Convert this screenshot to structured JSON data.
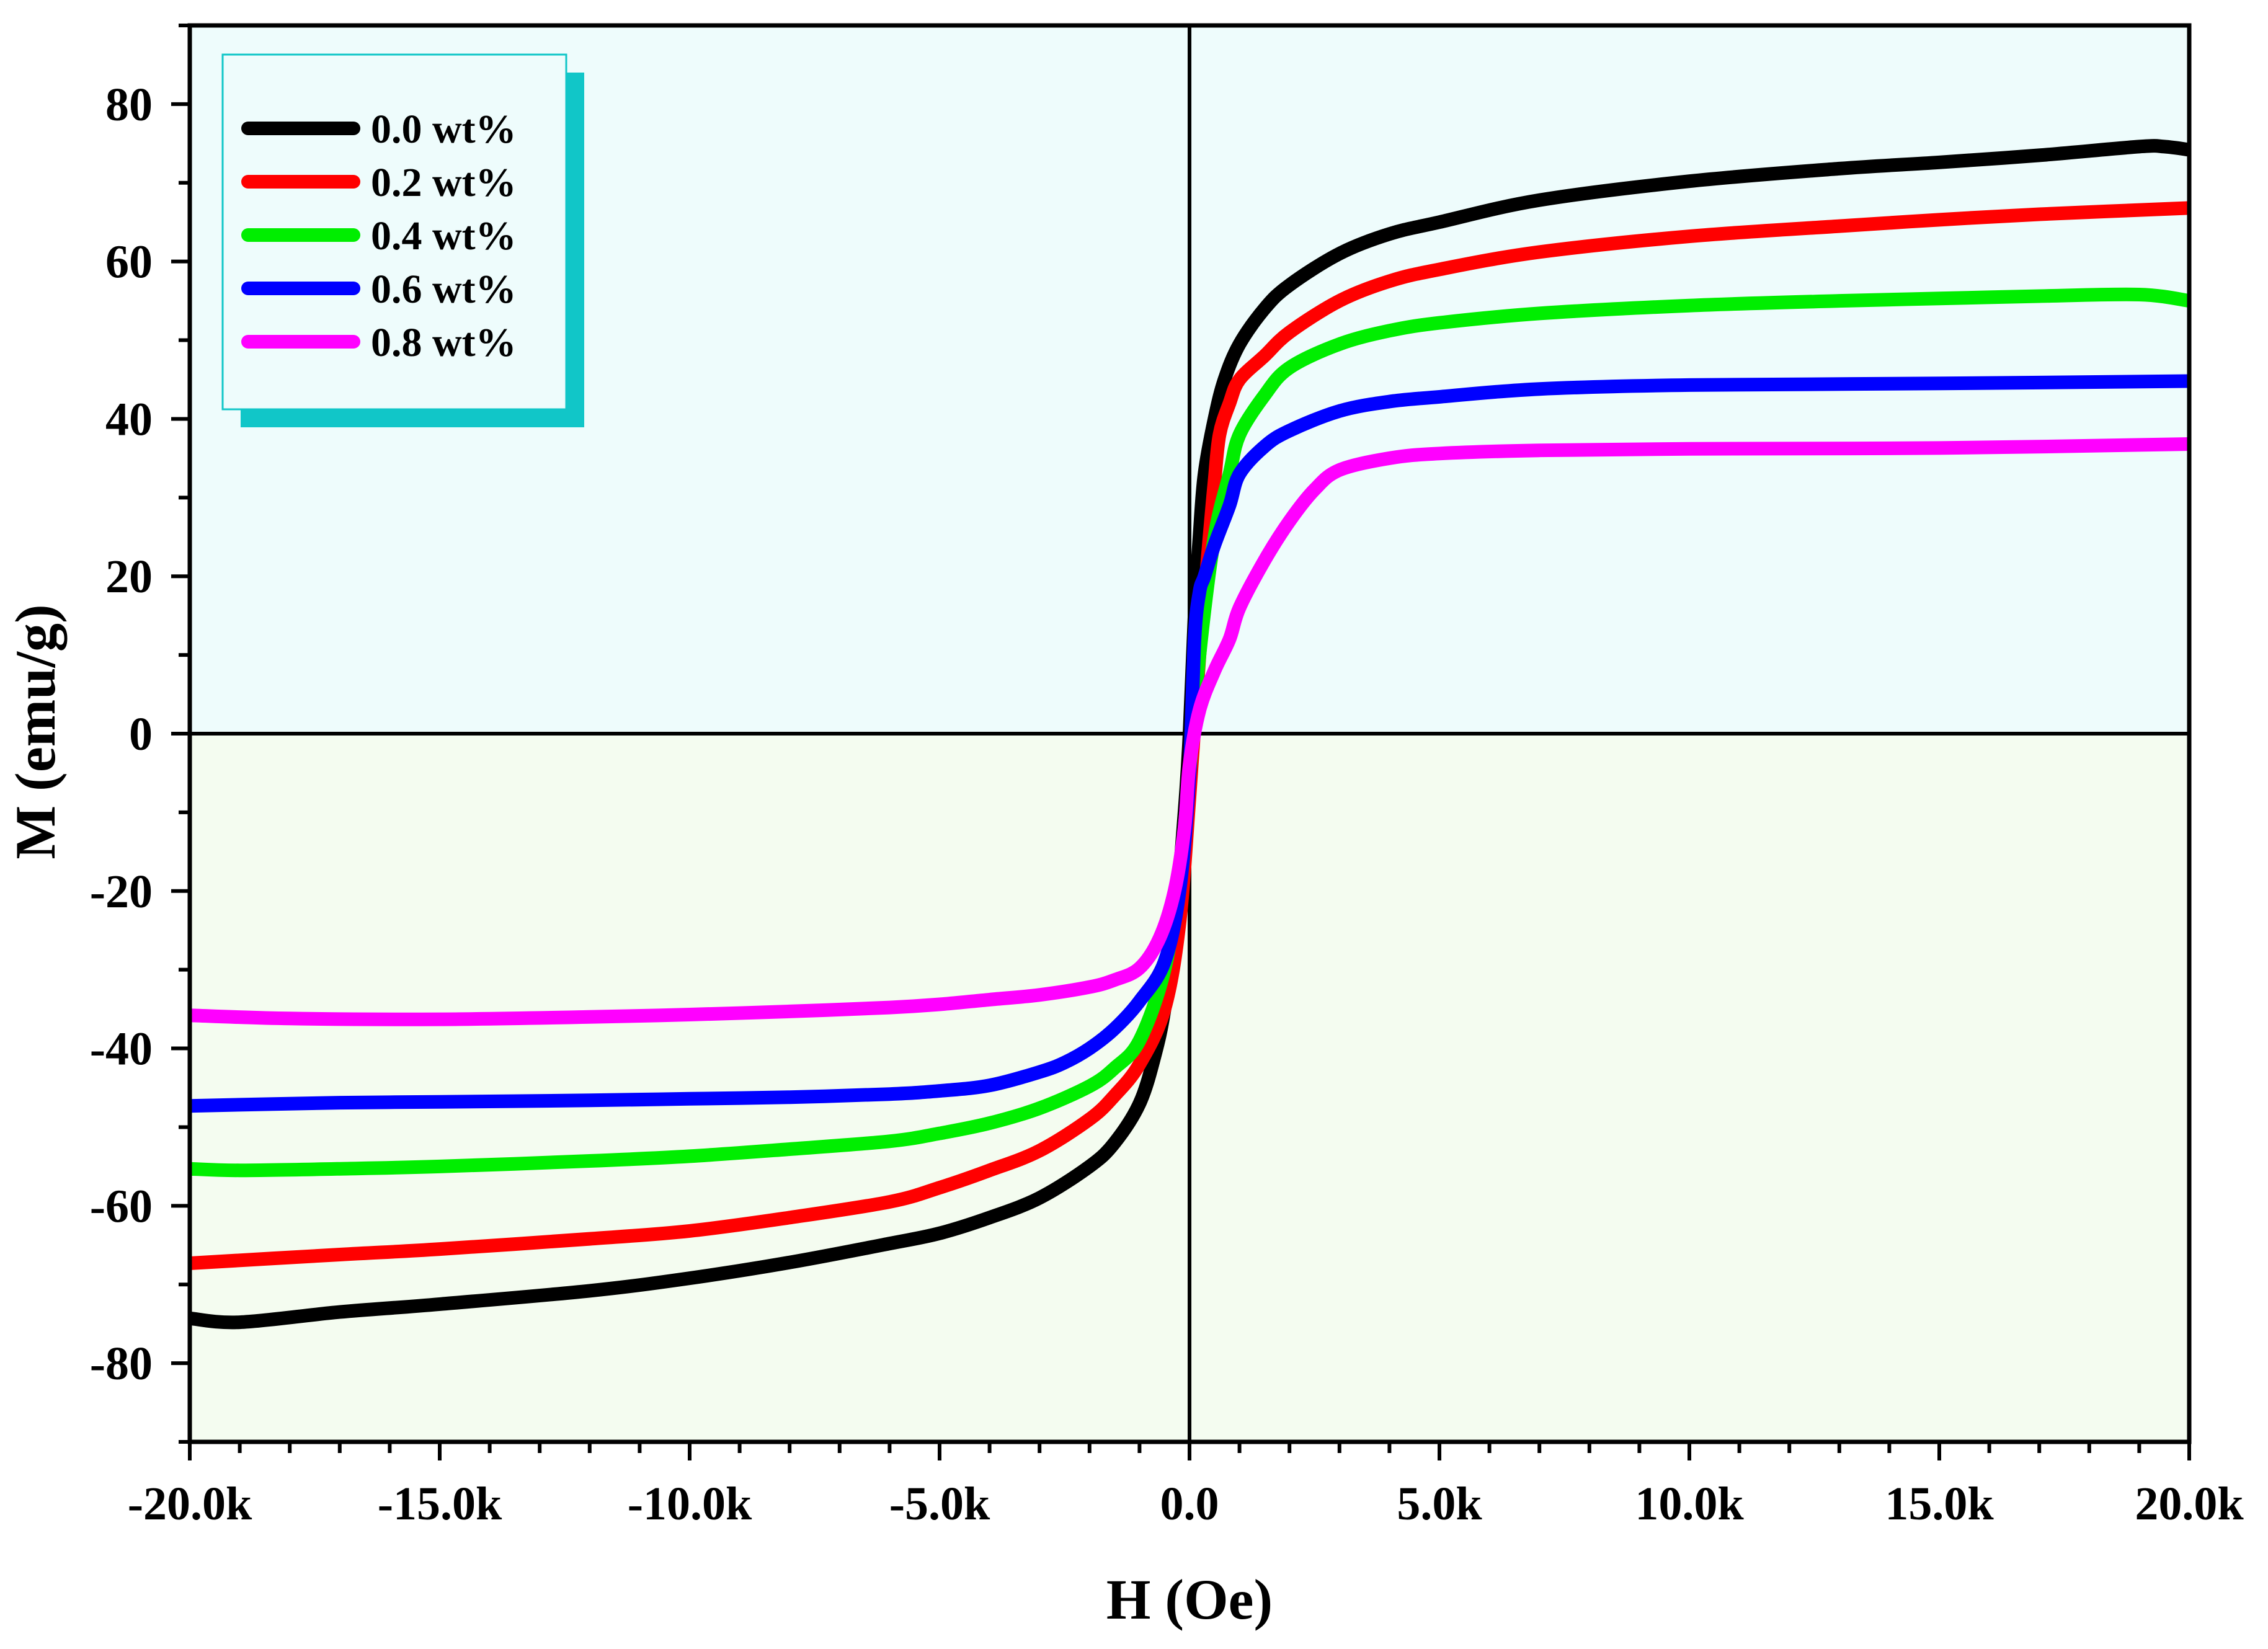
{
  "chart_data": {
    "type": "line",
    "title": "",
    "xlabel": "H (Oe)",
    "ylabel": "M (emu/g)",
    "xlim": [
      -20000,
      20000
    ],
    "ylim": [
      -90,
      90
    ],
    "x_ticks": [
      {
        "value": -20000,
        "label": "-20.0k"
      },
      {
        "value": -15000,
        "label": "-15.0k"
      },
      {
        "value": -10000,
        "label": "-10.0k"
      },
      {
        "value": -5000,
        "label": "-5.0k"
      },
      {
        "value": 0,
        "label": "0.0"
      },
      {
        "value": 5000,
        "label": "5.0k"
      },
      {
        "value": 10000,
        "label": "10.0k"
      },
      {
        "value": 15000,
        "label": "15.0k"
      },
      {
        "value": 20000,
        "label": "20.0k"
      }
    ],
    "y_ticks": [
      {
        "value": 80,
        "label": "80"
      },
      {
        "value": 60,
        "label": "60"
      },
      {
        "value": 40,
        "label": "40"
      },
      {
        "value": 20,
        "label": "20"
      },
      {
        "value": 0,
        "label": "0"
      },
      {
        "value": -20,
        "label": "-20"
      },
      {
        "value": -40,
        "label": "-40"
      },
      {
        "value": -60,
        "label": "-60"
      },
      {
        "value": -80,
        "label": "-80"
      }
    ],
    "grid": false,
    "zero_lines": true,
    "legend_position": "top-left",
    "background": {
      "upper": "#eefcfc",
      "lower": "#f4fcf0"
    },
    "series": [
      {
        "name": "0.0 wt%",
        "color": "#000000",
        "x": [
          -20000,
          -19000,
          -17000,
          -15000,
          -12000,
          -10000,
          -8000,
          -6000,
          -5000,
          -4000,
          -3000,
          -2000,
          -1500,
          -1000,
          -700,
          -500,
          -300,
          -100,
          0,
          100,
          200,
          300,
          500,
          700,
          1000,
          1500,
          2000,
          3000,
          4000,
          5000,
          7000,
          10000,
          13000,
          15000,
          17000,
          19000,
          19500,
          20000
        ],
        "y": [
          -74.3,
          -74.8,
          -73.5,
          -72.5,
          -70.8,
          -69.2,
          -67.2,
          -64.8,
          -63.5,
          -61.5,
          -59.0,
          -55.0,
          -52.0,
          -47.0,
          -41.0,
          -35.0,
          -25.0,
          -10.0,
          0.0,
          15.0,
          25.0,
          33.0,
          40.0,
          45.0,
          49.5,
          54.0,
          57.0,
          61.0,
          63.5,
          65.0,
          67.8,
          70.2,
          71.8,
          72.6,
          73.5,
          74.6,
          74.6,
          74.2
        ]
      },
      {
        "name": "0.2 wt%",
        "color": "#ff0000",
        "x": [
          -20000,
          -17000,
          -15000,
          -12000,
          -10000,
          -8000,
          -6000,
          -5000,
          -4000,
          -3000,
          -2000,
          -1500,
          -1000,
          -500,
          -200,
          0,
          200,
          400,
          500,
          600,
          800,
          1000,
          1500,
          2000,
          3000,
          4000,
          5000,
          7000,
          10000,
          13000,
          15000,
          17000,
          20000
        ],
        "y": [
          -67.3,
          -66.2,
          -65.5,
          -64.2,
          -63.2,
          -61.5,
          -59.5,
          -57.7,
          -55.5,
          -53.0,
          -49.0,
          -46.0,
          -42.0,
          -35.0,
          -24.0,
          -8.0,
          10.0,
          25.0,
          32.0,
          38.0,
          42.0,
          45.0,
          48.0,
          51.0,
          55.0,
          57.5,
          59.0,
          61.2,
          63.2,
          64.5,
          65.3,
          66.0,
          66.8
        ]
      },
      {
        "name": "0.4 wt%",
        "color": "#00ee00",
        "x": [
          -20000,
          -19000,
          -17000,
          -15000,
          -12000,
          -10000,
          -8000,
          -6000,
          -5000,
          -4000,
          -3000,
          -2000,
          -1500,
          -1000,
          -500,
          -200,
          0,
          200,
          500,
          800,
          1000,
          1500,
          2000,
          3000,
          4000,
          5000,
          7000,
          10000,
          13000,
          15000,
          17000,
          19000,
          20000
        ],
        "y": [
          -55.3,
          -55.5,
          -55.3,
          -55.0,
          -54.3,
          -53.7,
          -52.8,
          -51.8,
          -50.8,
          -49.5,
          -47.6,
          -44.8,
          -42.5,
          -39.0,
          -30.0,
          -18.0,
          -5.0,
          10.0,
          25.0,
          33.0,
          38.0,
          43.0,
          46.5,
          49.5,
          51.2,
          52.2,
          53.4,
          54.4,
          55.0,
          55.3,
          55.6,
          55.8,
          55.0
        ]
      },
      {
        "name": "0.6 wt%",
        "color": "#0000ff",
        "x": [
          -20000,
          -17000,
          -15000,
          -12000,
          -10000,
          -8000,
          -6000,
          -5000,
          -4000,
          -3000,
          -2500,
          -2000,
          -1500,
          -1000,
          -500,
          -200,
          0,
          100,
          200,
          300,
          500,
          800,
          1000,
          1500,
          2000,
          3000,
          4000,
          5000,
          7000,
          10000,
          15000,
          20000
        ],
        "y": [
          -47.3,
          -46.9,
          -46.8,
          -46.6,
          -46.4,
          -46.2,
          -45.8,
          -45.4,
          -44.7,
          -43.0,
          -41.8,
          -40.0,
          -37.5,
          -34.0,
          -29.0,
          -20.0,
          -5.0,
          12.0,
          18.0,
          20.0,
          24.0,
          29.0,
          33.0,
          36.5,
          38.5,
          41.0,
          42.2,
          42.8,
          43.8,
          44.3,
          44.5,
          44.8
        ]
      },
      {
        "name": "0.8 wt%",
        "color": "#ff00ff",
        "x": [
          -20000,
          -18000,
          -15000,
          -12000,
          -10000,
          -8000,
          -6000,
          -5000,
          -4000,
          -3000,
          -2000,
          -1500,
          -1000,
          -600,
          -300,
          -100,
          0,
          200,
          500,
          800,
          1000,
          1500,
          2000,
          2500,
          3000,
          4000,
          5000,
          7000,
          10000,
          15000,
          20000
        ],
        "y": [
          -35.8,
          -36.2,
          -36.3,
          -36.0,
          -35.7,
          -35.3,
          -34.8,
          -34.4,
          -33.8,
          -33.2,
          -32.2,
          -31.3,
          -29.8,
          -26.0,
          -20.0,
          -12.0,
          -4.0,
          3.0,
          8.0,
          12.0,
          16.0,
          22.0,
          27.0,
          31.0,
          33.5,
          35.0,
          35.6,
          36.0,
          36.2,
          36.3,
          36.8
        ]
      }
    ]
  }
}
